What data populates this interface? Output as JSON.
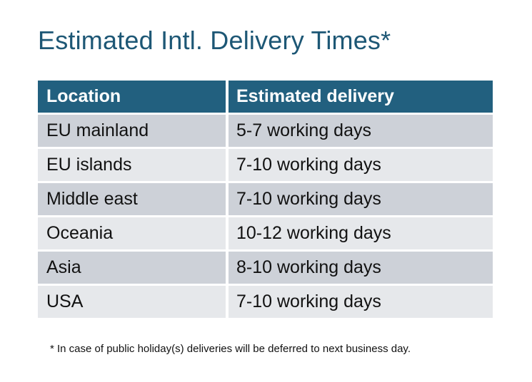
{
  "title": "Estimated Intl. Delivery Times*",
  "table": {
    "headers": [
      "Location",
      "Estimated delivery"
    ],
    "rows": [
      [
        "EU mainland",
        "5-7 working days"
      ],
      [
        "EU islands",
        "7-10 working days"
      ],
      [
        "Middle east",
        "7-10 working days"
      ],
      [
        "Oceania",
        "10-12 working days"
      ],
      [
        "Asia",
        "8-10 working days"
      ],
      [
        "USA",
        "7-10 working days"
      ]
    ]
  },
  "footnote": "* In case of public holiday(s) deliveries will be deferred to next business day.",
  "colors": {
    "header": "#22607f",
    "title": "#1d5775",
    "row_dark": "#cdd1d8",
    "row_light": "#e6e8eb"
  }
}
